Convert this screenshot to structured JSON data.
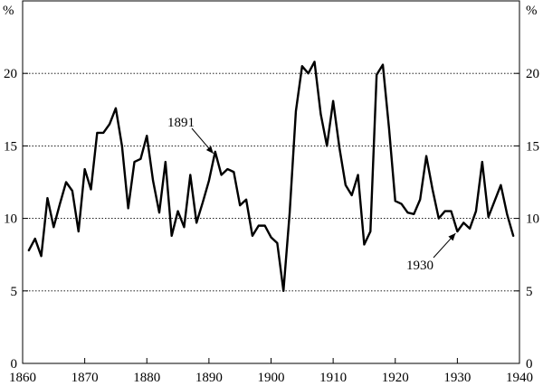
{
  "chart_data": {
    "type": "line",
    "title": "",
    "xlabel": "",
    "ylabel": "",
    "y_unit_left": "%",
    "y_unit_right": "%",
    "xlim": [
      1860,
      1940
    ],
    "ylim": [
      0,
      25
    ],
    "x_ticks": [
      1860,
      1870,
      1880,
      1890,
      1900,
      1910,
      1920,
      1930,
      1940
    ],
    "y_ticks": [
      0,
      5,
      10,
      15,
      20
    ],
    "y_tick_labels": [
      "0",
      "5",
      "10",
      "15",
      "20"
    ],
    "gridlines_y": [
      5,
      10,
      15,
      20
    ],
    "grid_style": "dotted horizontal",
    "series": [
      {
        "x": [
          1861,
          1862,
          1863,
          1864,
          1865,
          1866,
          1867,
          1868,
          1869,
          1870,
          1871,
          1872,
          1873,
          1874,
          1875,
          1876,
          1877,
          1878,
          1879,
          1880,
          1881,
          1882,
          1883,
          1884,
          1885,
          1886,
          1887,
          1888,
          1889,
          1890,
          1891,
          1892,
          1893,
          1894,
          1895,
          1896,
          1897,
          1898,
          1899,
          1900,
          1901,
          1902,
          1903,
          1904,
          1905,
          1906,
          1907,
          1908,
          1909,
          1910,
          1911,
          1912,
          1913,
          1914,
          1915,
          1916,
          1917,
          1918,
          1919,
          1920,
          1921,
          1922,
          1923,
          1924,
          1925,
          1926,
          1927,
          1928,
          1929,
          1930,
          1931,
          1932,
          1933,
          1934,
          1935,
          1936,
          1937,
          1938,
          1939
        ],
        "y": [
          7.8,
          8.6,
          7.4,
          11.4,
          9.4,
          11.0,
          12.5,
          11.9,
          9.1,
          13.4,
          12.0,
          15.9,
          15.9,
          16.5,
          17.6,
          15.0,
          10.7,
          13.9,
          14.1,
          15.7,
          12.6,
          10.4,
          13.9,
          8.8,
          10.5,
          9.4,
          13.0,
          9.7,
          11.1,
          12.6,
          14.6,
          13.0,
          13.4,
          13.2,
          10.9,
          11.3,
          8.8,
          9.5,
          9.5,
          8.7,
          8.3,
          5.0,
          10.4,
          17.4,
          20.5,
          20.0,
          20.8,
          17.2,
          15.0,
          18.1,
          14.9,
          12.3,
          11.6,
          13.0,
          8.2,
          9.1,
          19.9,
          20.6,
          16.2,
          11.2,
          11.0,
          10.4,
          10.3,
          11.3,
          14.3,
          12.0,
          10.0,
          10.5,
          10.5,
          9.1,
          9.7,
          9.3,
          10.5,
          13.9,
          10.1,
          11.2,
          12.3,
          10.3,
          8.8
        ]
      }
    ],
    "annotations": [
      {
        "text": "1891",
        "x": 1891,
        "y": 14.6
      },
      {
        "text": "1930",
        "x": 1930,
        "y": 9.1
      }
    ]
  }
}
